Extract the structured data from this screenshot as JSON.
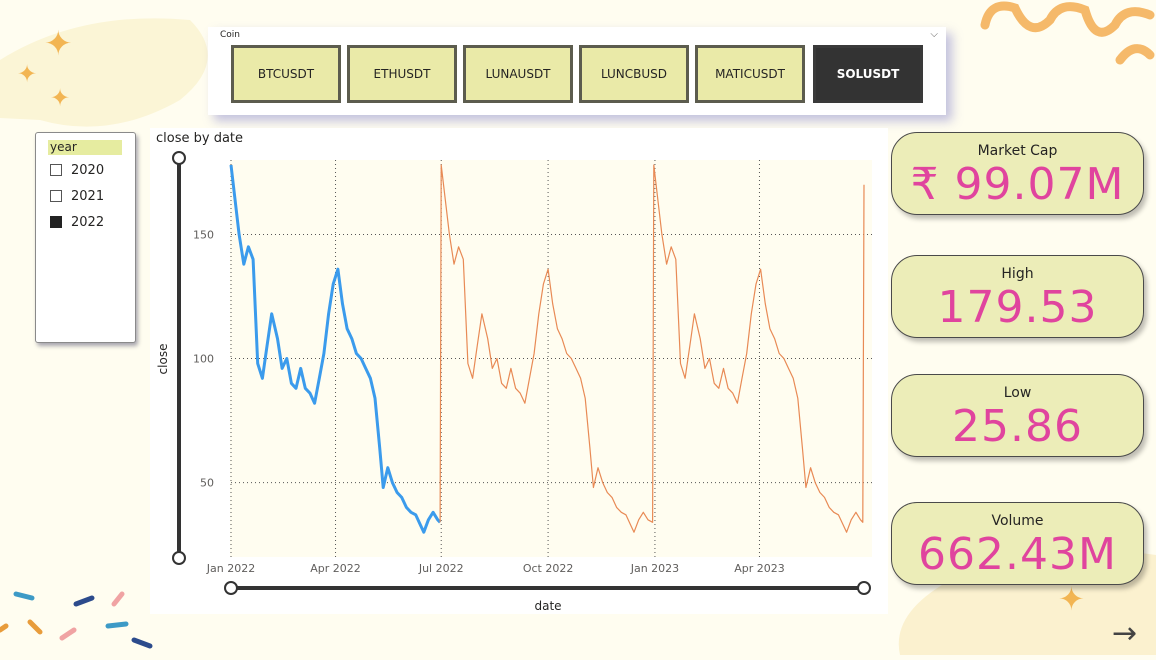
{
  "coin_slicer": {
    "title": "Coin",
    "chevron_icon": "chevron-down-icon",
    "options": [
      {
        "label": "BTCUSDT",
        "selected": false
      },
      {
        "label": "ETHUSDT",
        "selected": false
      },
      {
        "label": "LUNAUSDT",
        "selected": false
      },
      {
        "label": "LUNCBUSD",
        "selected": false
      },
      {
        "label": "MATICUSDT",
        "selected": false
      },
      {
        "label": "SOLUSDT",
        "selected": true
      }
    ]
  },
  "year_slicer": {
    "header": "year",
    "items": [
      {
        "label": "2020",
        "checked": false
      },
      {
        "label": "2021",
        "checked": false
      },
      {
        "label": "2022",
        "checked": true
      }
    ]
  },
  "kpis": {
    "market_cap": {
      "label": "Market Cap",
      "value": "₹ 99.07M"
    },
    "high": {
      "label": "High",
      "value": "179.53"
    },
    "low": {
      "label": "Low",
      "value": "25.86"
    },
    "volume": {
      "label": "Volume",
      "value": "662.43M"
    }
  },
  "nav": {
    "next_icon": "arrow-right-icon"
  },
  "colors": {
    "accent_pink": "#e0449e",
    "highlight_line": "#3b9bec",
    "dimmed_line": "#e88a55",
    "card_bg": "#ecedb8"
  },
  "chart_data": {
    "type": "line",
    "title": "close by date",
    "xlabel": "date",
    "ylabel": "close",
    "x_ticks": [
      "Jan 2022",
      "Apr 2022",
      "Jul 2022",
      "Oct 2022",
      "Jan 2023",
      "Apr 2023"
    ],
    "y_ticks": [
      50,
      100,
      150
    ],
    "ylim": [
      20,
      180
    ],
    "grid": true,
    "series": [
      {
        "highlighted": true,
        "points": [
          [
            "2022-01-01",
            178
          ],
          [
            "2022-01-08",
            150
          ],
          [
            "2022-01-12",
            138
          ],
          [
            "2022-01-16",
            145
          ],
          [
            "2022-01-20",
            140
          ],
          [
            "2022-01-24",
            98
          ],
          [
            "2022-01-28",
            92
          ],
          [
            "2022-02-01",
            105
          ],
          [
            "2022-02-05",
            118
          ],
          [
            "2022-02-10",
            108
          ],
          [
            "2022-02-14",
            96
          ],
          [
            "2022-02-18",
            100
          ],
          [
            "2022-02-22",
            90
          ],
          [
            "2022-02-26",
            88
          ],
          [
            "2022-03-02",
            96
          ],
          [
            "2022-03-06",
            88
          ],
          [
            "2022-03-10",
            86
          ],
          [
            "2022-03-14",
            82
          ],
          [
            "2022-03-18",
            92
          ],
          [
            "2022-03-22",
            102
          ],
          [
            "2022-03-26",
            118
          ],
          [
            "2022-03-30",
            130
          ],
          [
            "2022-04-03",
            136
          ],
          [
            "2022-04-07",
            122
          ],
          [
            "2022-04-11",
            112
          ],
          [
            "2022-04-15",
            108
          ],
          [
            "2022-04-19",
            102
          ],
          [
            "2022-04-23",
            100
          ],
          [
            "2022-04-27",
            96
          ],
          [
            "2022-05-01",
            92
          ],
          [
            "2022-05-05",
            84
          ],
          [
            "2022-05-09",
            64
          ],
          [
            "2022-05-12",
            48
          ],
          [
            "2022-05-16",
            56
          ],
          [
            "2022-05-20",
            50
          ],
          [
            "2022-05-24",
            46
          ],
          [
            "2022-05-28",
            44
          ],
          [
            "2022-06-01",
            40
          ],
          [
            "2022-06-05",
            38
          ],
          [
            "2022-06-09",
            37
          ],
          [
            "2022-06-13",
            33
          ],
          [
            "2022-06-16",
            30
          ],
          [
            "2022-06-20",
            35
          ],
          [
            "2022-06-24",
            38
          ],
          [
            "2022-06-28",
            35
          ],
          [
            "2022-06-30",
            34
          ]
        ]
      },
      {
        "highlighted": false,
        "points": [
          [
            "2022-06-30",
            34
          ],
          [
            "2022-07-01",
            178
          ],
          [
            "2022-07-08",
            150
          ],
          [
            "2022-07-12",
            138
          ],
          [
            "2022-07-16",
            145
          ],
          [
            "2022-07-20",
            140
          ],
          [
            "2022-07-24",
            98
          ],
          [
            "2022-07-28",
            92
          ],
          [
            "2022-08-01",
            105
          ],
          [
            "2022-08-05",
            118
          ],
          [
            "2022-08-10",
            108
          ],
          [
            "2022-08-14",
            96
          ],
          [
            "2022-08-18",
            100
          ],
          [
            "2022-08-22",
            90
          ],
          [
            "2022-08-26",
            88
          ],
          [
            "2022-08-30",
            96
          ],
          [
            "2022-09-03",
            88
          ],
          [
            "2022-09-07",
            86
          ],
          [
            "2022-09-11",
            82
          ],
          [
            "2022-09-15",
            92
          ],
          [
            "2022-09-19",
            102
          ],
          [
            "2022-09-23",
            118
          ],
          [
            "2022-09-27",
            130
          ],
          [
            "2022-10-01",
            136
          ],
          [
            "2022-10-05",
            122
          ],
          [
            "2022-10-09",
            112
          ],
          [
            "2022-10-13",
            108
          ],
          [
            "2022-10-17",
            102
          ],
          [
            "2022-10-21",
            100
          ],
          [
            "2022-10-25",
            96
          ],
          [
            "2022-10-29",
            92
          ],
          [
            "2022-11-02",
            84
          ],
          [
            "2022-11-06",
            64
          ],
          [
            "2022-11-09",
            48
          ],
          [
            "2022-11-13",
            56
          ],
          [
            "2022-11-17",
            50
          ],
          [
            "2022-11-21",
            46
          ],
          [
            "2022-11-25",
            44
          ],
          [
            "2022-11-29",
            40
          ],
          [
            "2022-12-03",
            38
          ],
          [
            "2022-12-07",
            37
          ],
          [
            "2022-12-11",
            33
          ],
          [
            "2022-12-14",
            30
          ],
          [
            "2022-12-18",
            35
          ],
          [
            "2022-12-22",
            38
          ],
          [
            "2022-12-26",
            35
          ],
          [
            "2022-12-30",
            34
          ],
          [
            "2022-12-31",
            178
          ],
          [
            "2023-01-07",
            150
          ],
          [
            "2023-01-11",
            138
          ],
          [
            "2023-01-15",
            145
          ],
          [
            "2023-01-19",
            140
          ],
          [
            "2023-01-23",
            98
          ],
          [
            "2023-01-27",
            92
          ],
          [
            "2023-01-31",
            105
          ],
          [
            "2023-02-04",
            118
          ],
          [
            "2023-02-09",
            108
          ],
          [
            "2023-02-13",
            96
          ],
          [
            "2023-02-17",
            100
          ],
          [
            "2023-02-21",
            90
          ],
          [
            "2023-02-25",
            88
          ],
          [
            "2023-03-01",
            96
          ],
          [
            "2023-03-05",
            88
          ],
          [
            "2023-03-09",
            86
          ],
          [
            "2023-03-13",
            82
          ],
          [
            "2023-03-17",
            92
          ],
          [
            "2023-03-21",
            102
          ],
          [
            "2023-03-25",
            118
          ],
          [
            "2023-03-29",
            130
          ],
          [
            "2023-04-02",
            136
          ],
          [
            "2023-04-06",
            122
          ],
          [
            "2023-04-10",
            112
          ],
          [
            "2023-04-14",
            108
          ],
          [
            "2023-04-18",
            102
          ],
          [
            "2023-04-22",
            100
          ],
          [
            "2023-04-26",
            96
          ],
          [
            "2023-04-30",
            92
          ],
          [
            "2023-05-04",
            84
          ],
          [
            "2023-05-08",
            64
          ],
          [
            "2023-05-11",
            48
          ],
          [
            "2023-05-15",
            56
          ],
          [
            "2023-05-19",
            50
          ],
          [
            "2023-05-23",
            46
          ],
          [
            "2023-05-27",
            44
          ],
          [
            "2023-05-31",
            40
          ],
          [
            "2023-06-04",
            38
          ],
          [
            "2023-06-08",
            37
          ],
          [
            "2023-06-12",
            33
          ],
          [
            "2023-06-15",
            30
          ],
          [
            "2023-06-19",
            35
          ],
          [
            "2023-06-23",
            38
          ],
          [
            "2023-06-27",
            35
          ],
          [
            "2023-06-29",
            34
          ],
          [
            "2023-06-30",
            170
          ]
        ]
      }
    ]
  }
}
